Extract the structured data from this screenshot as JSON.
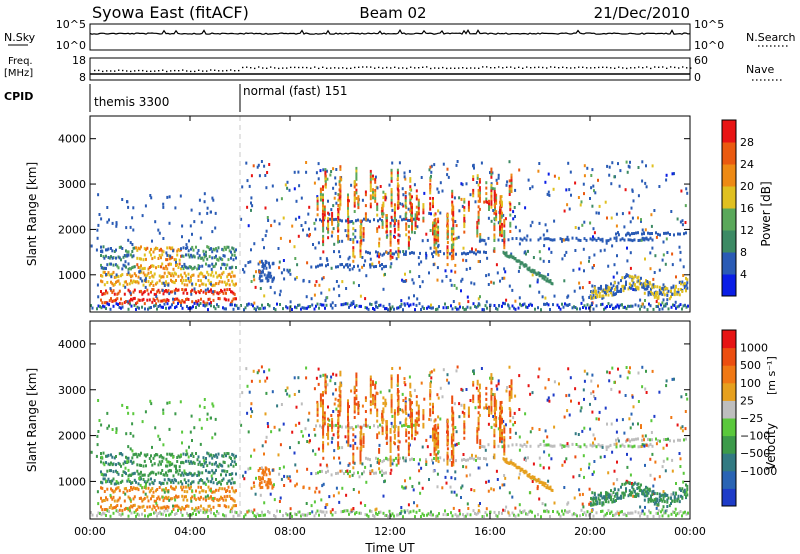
{
  "header": {
    "station": "Syowa East (fitACF)",
    "beam": "Beam 02",
    "date": "21/Dec/2010"
  },
  "summary": {
    "nsky_label": "N.Sky",
    "nsky_ticks": [
      "10^5",
      "10^0"
    ],
    "nsearch_label": "N.Search",
    "nsearch_ticks": [
      "10^5",
      "10^0"
    ],
    "freq_label": "Freq.",
    "freq_unit": "[MHz]",
    "freq_ticks": [
      "18",
      "8"
    ],
    "nave_label": "Nave",
    "nave_ticks": [
      "60",
      "0"
    ],
    "cpid_label": "CPID",
    "cpid_segments": [
      {
        "name": "themis 3300",
        "start_h": 0,
        "end_h": 6
      },
      {
        "name": "normal (fast) 151",
        "start_h": 6,
        "end_h": 24
      }
    ]
  },
  "chart_data": [
    {
      "type": "heatmap",
      "title": "",
      "xlabel": "",
      "ylabel": "Slant Range [km]",
      "xlim_hours": [
        0,
        24
      ],
      "ylim": [
        180,
        4500
      ],
      "y_ticks": [
        "1000",
        "2000",
        "3000",
        "4000"
      ],
      "colorbar_label": "Power [dB]",
      "colorbar_ticks": [
        "4",
        "8",
        "12",
        "16",
        "20",
        "24",
        "28"
      ],
      "colors": [
        "#0a1ee6",
        "#2a5bb5",
        "#3c8a64",
        "#5aa85a",
        "#e0c020",
        "#ee8a14",
        "#ea5a10",
        "#e81414"
      ]
    },
    {
      "type": "heatmap",
      "title": "",
      "xlabel": "Time UT",
      "ylabel": "Slant Range [km]",
      "xlim_hours": [
        0,
        24
      ],
      "ylim": [
        180,
        4500
      ],
      "x_ticks": [
        "00:00",
        "04:00",
        "08:00",
        "12:00",
        "16:00",
        "20:00",
        "00:00"
      ],
      "y_ticks": [
        "1000",
        "2000",
        "3000",
        "4000"
      ],
      "colorbar_label": "Velocity",
      "colorbar_unit": "[m s⁻¹]",
      "colorbar_ticks": [
        "1000",
        "500",
        "100",
        "25",
        "−25",
        "−100",
        "−500",
        "−1000"
      ],
      "colors": [
        "#1e3cc8",
        "#2a64b4",
        "#327a82",
        "#3c9a4a",
        "#5ac83c",
        "#bebebe",
        "#e6a01e",
        "#f07814",
        "#ec4e10",
        "#e61414"
      ]
    }
  ]
}
